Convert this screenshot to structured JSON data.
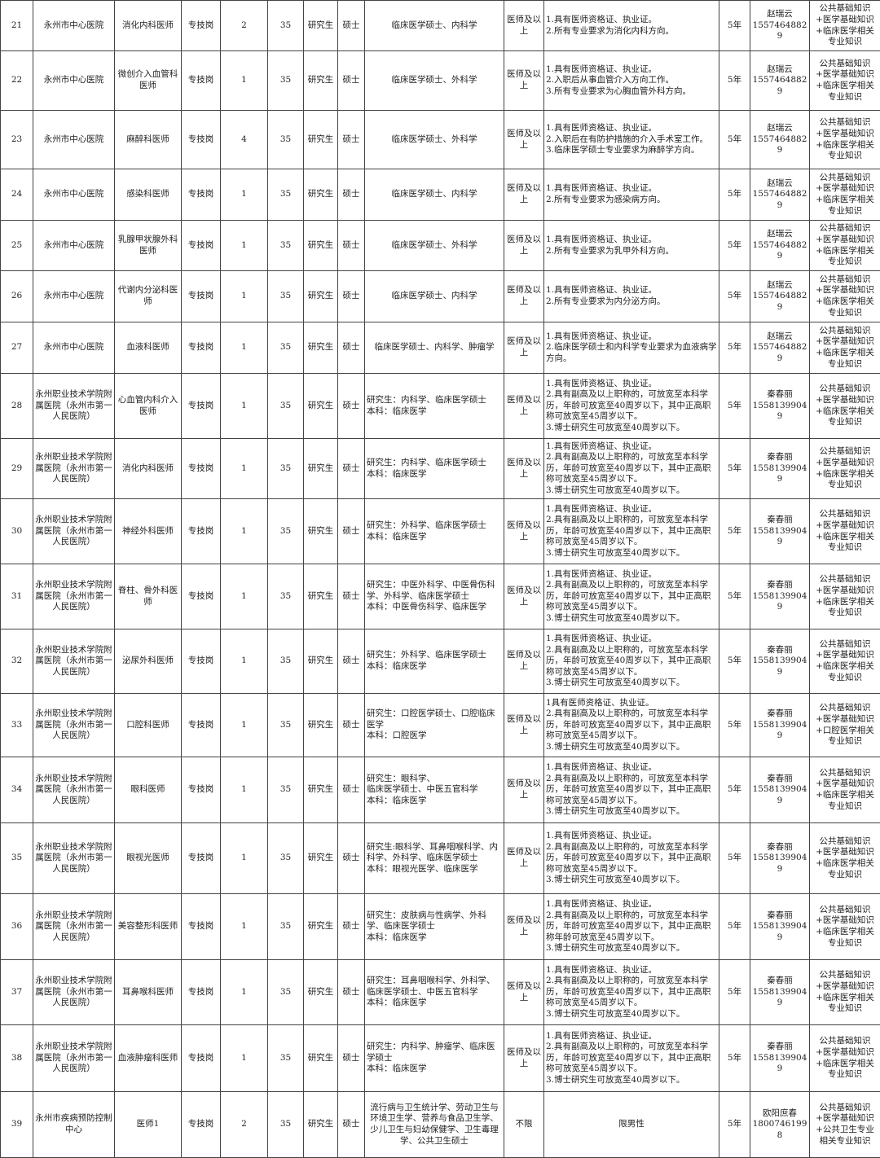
{
  "table": {
    "rows": [
      [
        "21",
        "永州市中心医院",
        "消化内科医师",
        "专技岗",
        "2",
        "35",
        "研究生",
        "硕士",
        "临床医学硕士、内科学",
        "医师及以上",
        "1.具有医师资格证、执业证。\n2.所有专业要求为消化内科方向。",
        "5年",
        "赵瑞云\n15574648829",
        "公共基础知识+医学基础知识+临床医学相关专业知识"
      ],
      [
        "22",
        "永州市中心医院",
        "微创介入血管科医师",
        "专技岗",
        "1",
        "35",
        "研究生",
        "硕士",
        "临床医学硕士、外科学",
        "医师及以上",
        "1.具有医师资格证、执业证。\n2.入职后从事血管介入方向工作。\n3.所有专业要求为心胸血管外科方向。",
        "5年",
        "赵瑞云\n15574648829",
        "公共基础知识+医学基础知识+临床医学相关专业知识"
      ],
      [
        "23",
        "永州市中心医院",
        "麻醉科医师",
        "专技岗",
        "4",
        "35",
        "研究生",
        "硕士",
        "临床医学硕士、外科学",
        "医师及以上",
        "1.具有医师资格证、执业证。\n2.入职后在有防护措施的介入手术室工作。\n3.临床医学硕士专业要求为麻醉学方向。",
        "5年",
        "赵瑞云\n15574648829",
        "公共基础知识+医学基础知识+临床医学相关专业知识"
      ],
      [
        "24",
        "永州市中心医院",
        "感染科医师",
        "专技岗",
        "1",
        "35",
        "研究生",
        "硕士",
        "临床医学硕士、内科学",
        "医师及以上",
        "1.具有医师资格证、执业证。\n2.所有专业要求为感染病方向。",
        "5年",
        "赵瑞云\n15574648829",
        "公共基础知识+医学基础知识+临床医学相关专业知识"
      ],
      [
        "25",
        "永州市中心医院",
        "乳腺甲状腺外科医师",
        "专技岗",
        "1",
        "35",
        "研究生",
        "硕士",
        "临床医学硕士、外科学",
        "医师及以上",
        "1.具有医师资格证、执业证。\n2.所有专业要求为乳甲外科方向。",
        "5年",
        "赵瑞云\n15574648829",
        "公共基础知识+医学基础知识+临床医学相关专业知识"
      ],
      [
        "26",
        "永州市中心医院",
        "代谢内分泌科医师",
        "专技岗",
        "1",
        "35",
        "研究生",
        "硕士",
        "临床医学硕士、内科学",
        "医师及以上",
        "1.具有医师资格证、执业证。\n2.所有专业要求为内分泌方向。",
        "5年",
        "赵瑞云\n15574648829",
        "公共基础知识+医学基础知识+临床医学相关专业知识"
      ],
      [
        "27",
        "永州市中心医院",
        "血液科医师",
        "专技岗",
        "1",
        "35",
        "研究生",
        "硕士",
        "临床医学硕士、内科学、肿瘤学",
        "医师及以上",
        "1.具有医师资格证、执业证。\n2.临床医学硕士和内科学专业要求为血液病学方向。",
        "5年",
        "赵瑞云\n15574648829",
        "公共基础知识+医学基础知识+临床医学相关专业知识"
      ],
      [
        "28",
        "永州职业技术学院附属医院（永州市第一人民医院）",
        "心血管内科介入医师",
        "专技岗",
        "1",
        "35",
        "研究生",
        "硕士",
        "研究生：内科学、临床医学硕士\n本科：临床医学",
        "医师及以上",
        "1.具有医师资格证、执业证。\n2.具有副高及以上职称的，可放宽至本科学历，年龄可放宽至40周岁以下，其中正高职称可放宽至45周岁以下。\n3.博士研究生可放宽至40周岁以下。",
        "5年",
        "秦春丽\n15581399049",
        "公共基础知识+医学基础知识+临床医学相关专业知识"
      ],
      [
        "29",
        "永州职业技术学院附属医院（永州市第一人民医院）",
        "消化内科医师",
        "专技岗",
        "1",
        "35",
        "研究生",
        "硕士",
        "研究生：内科学、临床医学硕士\n本科：临床医学",
        "医师及以上",
        "1.具有医师资格证、执业证。\n2.具有副高及以上职称的，可放宽至本科学历，年龄可放宽至40周岁以下，其中正高职称可放宽至45周岁以下。\n3.博士研究生可放宽至40周岁以下。",
        "5年",
        "秦春丽\n15581399049",
        "公共基础知识+医学基础知识+临床医学相关专业知识"
      ],
      [
        "30",
        "永州职业技术学院附属医院（永州市第一人民医院）",
        "神经外科医师",
        "专技岗",
        "1",
        "35",
        "研究生",
        "硕士",
        "研究生：外科学、临床医学硕士\n本科：临床医学",
        "医师及以上",
        "1.具有医师资格证、执业证。\n2.具有副高及以上职称的，可放宽至本科学历，年龄可放宽至40周岁以下，其中正高职称可放宽至45周岁以下。\n3.博士研究生可放宽至40周岁以下。",
        "5年",
        "秦春丽\n15581399049",
        "公共基础知识+医学基础知识+临床医学相关专业知识"
      ],
      [
        "31",
        "永州职业技术学院附属医院（永州市第一人民医院）",
        "脊柱、骨外科医师",
        "专技岗",
        "1",
        "35",
        "研究生",
        "硕士",
        "研究生：中医外科学、中医骨伤科学、外科学、临床医学硕士\n本科：中医骨伤科学、临床医学",
        "医师及以上",
        "1.具有医师资格证、执业证。\n2.具有副高及以上职称的，可放宽至本科学历，年龄可放宽至40周岁以下，其中正高职称可放宽至45周岁以下。\n3.博士研究生可放宽至40周岁以下。",
        "5年",
        "秦春丽\n15581399049",
        "公共基础知识+医学基础知识+临床医学相关专业知识"
      ],
      [
        "32",
        "永州职业技术学院附属医院（永州市第一人民医院）",
        "泌尿外科医师",
        "专技岗",
        "1",
        "35",
        "研究生",
        "硕士",
        "研究生：外科学、临床医学硕士\n本科：临床医学",
        "医师及以上",
        "1.具有医师资格证、执业证。\n2.具有副高及以上职称的，可放宽至本科学历，年龄可放宽至40周岁以下，其中正高职称可放宽至45周岁以下。\n3.博士研究生可放宽至40周岁以下。",
        "5年",
        "秦春丽\n15581399049",
        "公共基础知识+医学基础知识+临床医学相关专业知识"
      ],
      [
        "33",
        "永州职业技术学院附属医院（永州市第一人民医院）",
        "口腔科医师",
        "专技岗",
        "1",
        "35",
        "研究生",
        "硕士",
        "研究生：口腔医学硕士、口腔临床医学\n本科：口腔医学",
        "医师及以上",
        "1具有医师资格证、执业证。\n2.具有副高及以上职称的，可放宽至本科学历，年龄可放宽至40周岁以下，其中正高职称可放宽至45周岁以下。\n3.博士研究生可放宽至40周岁以下。",
        "5年",
        "秦春丽\n15581399049",
        "公共基础知识+医学基础知识+口腔医学相关专业知识"
      ],
      [
        "34",
        "永州职业技术学院附属医院（永州市第一人民医院）",
        "眼科医师",
        "专技岗",
        "1",
        "35",
        "研究生",
        "硕士",
        "研究生：眼科学、\n临床医学硕士、中医五官科学\n本科：临床医学",
        "医师及以上",
        "1.具有医师资格证、执业证。\n2.具有副高及以上职称的，可放宽至本科学历，年龄可放宽至40周岁以下，其中正高职称可放宽至45周岁以下。\n3.博士研究生可放宽至40周岁以下。",
        "5年",
        "秦春丽\n15581399049",
        "公共基础知识+医学基础知识+临床医学相关专业知识"
      ],
      [
        "35",
        "永州职业技术学院附属医院（永州市第一人民医院）",
        "眼视光医师",
        "专技岗",
        "1",
        "35",
        "研究生",
        "硕士",
        "研究生:眼科学、耳鼻咽喉科学、内科学、外科学、临床医学硕士\n本科：眼视光医学、临床医学",
        "医师及以上",
        "1.具有医师资格证、执业证。\n2.具有副高及以上职称的，可放宽至本科学历，年龄可放宽至40周岁以下，其中正高职称可放宽至45周岁以下。\n3.博士研究生可放宽至40周岁以下。",
        "5年",
        "秦春丽\n15581399049",
        "公共基础知识+医学基础知识+临床医学相关专业知识"
      ],
      [
        "36",
        "永州职业技术学院附属医院（永州市第一人民医院）",
        "美容整形科医师",
        "专技岗",
        "1",
        "35",
        "研究生",
        "硕士",
        "研究生：皮肤病与性病学、外科学、临床医学硕士\n本科：临床医学",
        "医师及以上",
        "1.具有医师资格证、执业证。\n2.具有副高及以上职称的，可放宽至本科学历，年龄可放宽至40周岁以下，其中正高职称年龄可放宽至45周岁以下。\n3.博士研究生可放宽至40周岁以下。",
        "5年",
        "秦春丽\n15581399049",
        "公共基础知识+医学基础知识+临床医学相关专业知识"
      ],
      [
        "37",
        "永州职业技术学院附属医院（永州市第一人民医院）",
        "耳鼻喉科医师",
        "专技岗",
        "1",
        "35",
        "研究生",
        "硕士",
        "研究生：耳鼻咽喉科学、外科学、临床医学硕士、中医五官科学\n本科：临床医学",
        "医师及以上",
        "1.具有医师资格证、执业证。\n2.具有副高及以上职称的，可放宽至本科学历，年龄可放宽至40周岁以下，其中正高职称可放宽至45周岁以下。\n3.博士研究生可放宽至40周岁以下。",
        "5年",
        "秦春丽\n15581399049",
        "公共基础知识+医学基础知识+临床医学相关专业知识"
      ],
      [
        "38",
        "永州职业技术学院附属医院（永州市第一人民医院）",
        "血液肿瘤科医师",
        "专技岗",
        "1",
        "35",
        "研究生",
        "硕士",
        "研究生：内科学、肿瘤学、临床医学硕士\n本科：临床医学",
        "医师及以上",
        "1.具有医师资格证、执业证。\n2.具有副高及以上职称的，可放宽至本科学历，年龄可放宽至40周岁以下，其中正高职称可放宽至45周岁以下。\n3.博士研究生可放宽至40周岁以下。",
        "5年",
        "秦春丽\n15581399049",
        "公共基础知识+医学基础知识+临床医学相关专业知识"
      ],
      [
        "39",
        "永州市疾病预防控制中心",
        "医师1",
        "专技岗",
        "2",
        "35",
        "研究生",
        "硕士",
        "流行病与卫生统计学、劳动卫生与环境卫生学、营养与食品卫生学、少儿卫生与妇幼保健学、卫生毒理学、公共卫生硕士",
        "不限",
        "限男性",
        "5年",
        "欧阳庶春\n18007461998",
        "公共基础知识+医学基础知识+公共卫生专业相关专业知识"
      ]
    ]
  }
}
